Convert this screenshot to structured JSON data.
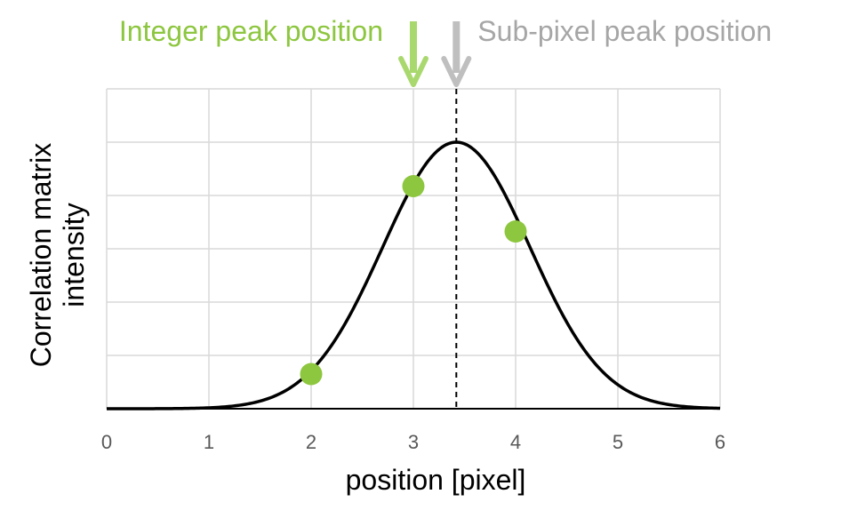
{
  "chart_data": {
    "type": "line",
    "xlabel": "position [pixel]",
    "ylabel": "Correlation matrix intensity",
    "xlim": [
      0,
      6
    ],
    "ylim": [
      0,
      1.2
    ],
    "x_ticks": [
      "0",
      "1",
      "2",
      "3",
      "4",
      "5",
      "6"
    ],
    "y_tick_labels_visible": false,
    "grid": true,
    "series": [
      {
        "type": "line",
        "mean": 3.42,
        "sigma": 0.72,
        "amplitude": 1.0,
        "color": "#000000"
      },
      {
        "type": "scatter",
        "x": [
          2,
          3,
          4
        ],
        "y": [
          0.13,
          0.835,
          0.665
        ],
        "color": "#8dc63f"
      }
    ],
    "peak_line_x": 3.42,
    "annotations": [
      {
        "text": "Integer peak position",
        "x": 3,
        "color": "#8dc63f",
        "arrow_color": "#a9d86e"
      },
      {
        "text": "Sub-pixel peak position",
        "x": 3.42,
        "color": "#a6a6a6",
        "arrow_color": "#bfbfbf"
      }
    ]
  }
}
